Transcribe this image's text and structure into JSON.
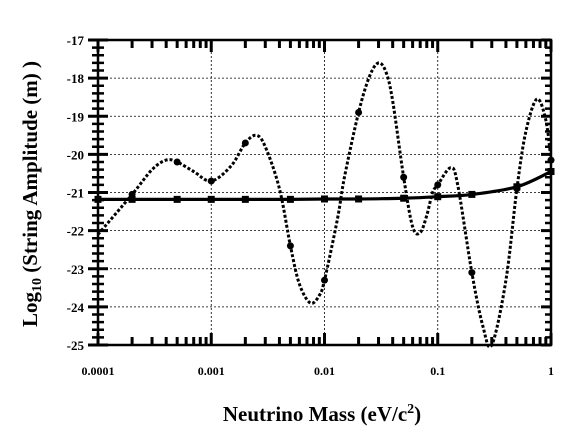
{
  "chart_data": {
    "type": "line",
    "xlabel": "Neutrino Mass (eV/c²)",
    "ylabel": "Log10 (String Amplitude (m) )",
    "ylabel_parts": {
      "prefix": "Log",
      "subscript": "10",
      "suffix": " (String Amplitude (m) )"
    },
    "xlabel_parts": {
      "prefix": "Neutrino Mass (eV/c",
      "superscript": "2",
      "suffix": ")"
    },
    "x_scale": "log",
    "xlim": [
      0.0001,
      1
    ],
    "ylim": [
      -25,
      -17
    ],
    "grid": true,
    "x_tick_labels": [
      "0.0001",
      "0.001",
      "0.01",
      "0.1",
      "1"
    ],
    "y_tick_labels": [
      "-17",
      "-18",
      "-19",
      "-20",
      "-21",
      "-22",
      "-23",
      "-24",
      "-25"
    ],
    "series": [
      {
        "style": "solid",
        "color": "#000000",
        "x": [
          0.0001,
          0.0002,
          0.0005,
          0.001,
          0.002,
          0.005,
          0.01,
          0.02,
          0.05,
          0.1,
          0.2,
          0.5,
          1
        ],
        "y": [
          -21.18,
          -21.18,
          -21.18,
          -21.18,
          -21.18,
          -21.18,
          -21.17,
          -21.17,
          -21.15,
          -21.11,
          -21.05,
          -20.85,
          -20.45
        ]
      },
      {
        "style": "dashed",
        "color": "#000000",
        "x": [
          0.0001,
          0.0002,
          0.0003,
          0.0004,
          0.0005,
          0.0007,
          0.001,
          0.0015,
          0.002,
          0.0025,
          0.003,
          0.004,
          0.005,
          0.006,
          0.0075,
          0.009,
          0.01,
          0.013,
          0.015,
          0.02,
          0.025,
          0.03,
          0.035,
          0.04,
          0.05,
          0.06,
          0.07,
          0.08,
          0.09,
          0.1,
          0.13,
          0.15,
          0.2,
          0.25,
          0.3,
          0.4,
          0.5,
          0.6,
          0.75,
          0.9,
          1
        ],
        "y": [
          -22.1,
          -21.05,
          -20.4,
          -20.15,
          -20.2,
          -20.45,
          -20.7,
          -20.3,
          -19.7,
          -19.5,
          -19.8,
          -20.9,
          -22.4,
          -23.4,
          -23.9,
          -23.7,
          -23.3,
          -21.7,
          -20.6,
          -18.9,
          -17.95,
          -17.6,
          -17.85,
          -18.6,
          -20.6,
          -21.9,
          -22.05,
          -21.6,
          -21.0,
          -20.8,
          -20.35,
          -20.8,
          -23.1,
          -24.5,
          -25.0,
          -23.3,
          -20.9,
          -19.4,
          -18.55,
          -19.1,
          -20.15
        ]
      }
    ]
  }
}
